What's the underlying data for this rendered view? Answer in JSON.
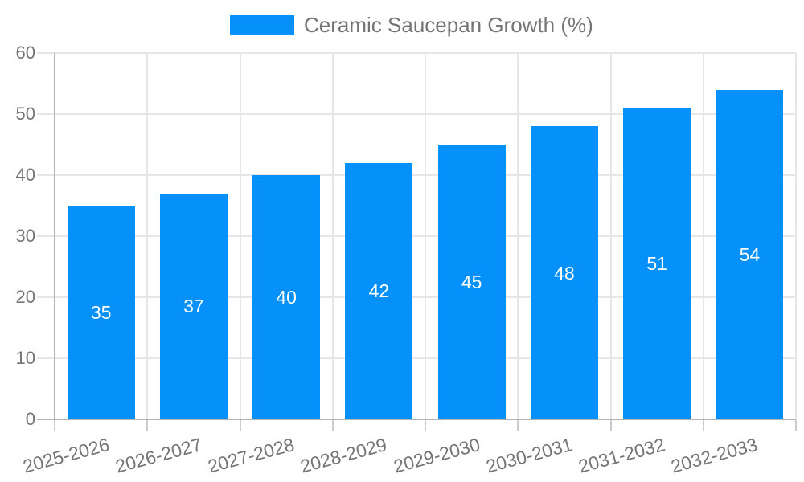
{
  "legend": {
    "label": "Ceramic Saucepan Growth (%)",
    "swatch_color": "#0590fa"
  },
  "chart_data": {
    "type": "bar",
    "title": "",
    "categories": [
      "2025-2026",
      "2026-2027",
      "2027-2028",
      "2028-2029",
      "2029-2030",
      "2030-2031",
      "2031-2032",
      "2032-2033"
    ],
    "series": [
      {
        "name": "Ceramic Saucepan Growth (%)",
        "values": [
          35,
          37,
          40,
          42,
          45,
          48,
          51,
          54
        ],
        "color": "#0590fa"
      }
    ],
    "xlabel": "",
    "ylabel": "",
    "ylim": [
      0,
      60
    ],
    "yticks": [
      0,
      10,
      20,
      30,
      40,
      50,
      60
    ],
    "grid": true,
    "legend_position": "top",
    "value_labels": "inside-middle",
    "value_label_color": "#ffffff",
    "axis_text_color": "#757575",
    "gridline_color": "#e6e6e6",
    "axis_line_color": "#b3b3b3",
    "tick_color": "#cccccc",
    "x_label_rotation_deg": -15
  }
}
